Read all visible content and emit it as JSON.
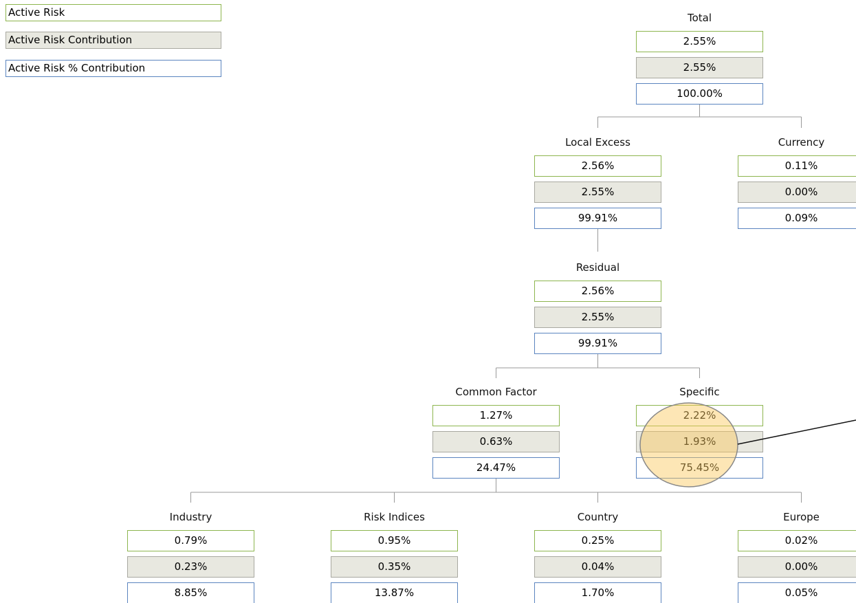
{
  "legend": [
    "Active Risk",
    "Active Risk Contribution",
    "Active Risk % Contribution"
  ],
  "nodes": [
    {
      "label": "Total",
      "active_risk": "2.55%",
      "contribution": "2.55%",
      "pct_contribution": "100.00%"
    },
    {
      "label": "Local Excess",
      "active_risk": "2.56%",
      "contribution": "2.55%",
      "pct_contribution": "99.91%"
    },
    {
      "label": "Currency",
      "active_risk": "0.11%",
      "contribution": "0.00%",
      "pct_contribution": "0.09%"
    },
    {
      "label": "Residual",
      "active_risk": "2.56%",
      "contribution": "2.55%",
      "pct_contribution": "99.91%"
    },
    {
      "label": "Common Factor",
      "active_risk": "1.27%",
      "contribution": "0.63%",
      "pct_contribution": "24.47%"
    },
    {
      "label": "Specific",
      "active_risk": "2.22%",
      "contribution": "1.93%",
      "pct_contribution": "75.45%"
    },
    {
      "label": "Industry",
      "active_risk": "0.79%",
      "contribution": "0.23%",
      "pct_contribution": "8.85%"
    },
    {
      "label": "Risk Indices",
      "active_risk": "0.95%",
      "contribution": "0.35%",
      "pct_contribution": "13.87%"
    },
    {
      "label": "Country",
      "active_risk": "0.25%",
      "contribution": "0.04%",
      "pct_contribution": "1.70%"
    },
    {
      "label": "Europe",
      "active_risk": "0.02%",
      "contribution": "0.00%",
      "pct_contribution": "0.05%"
    }
  ]
}
